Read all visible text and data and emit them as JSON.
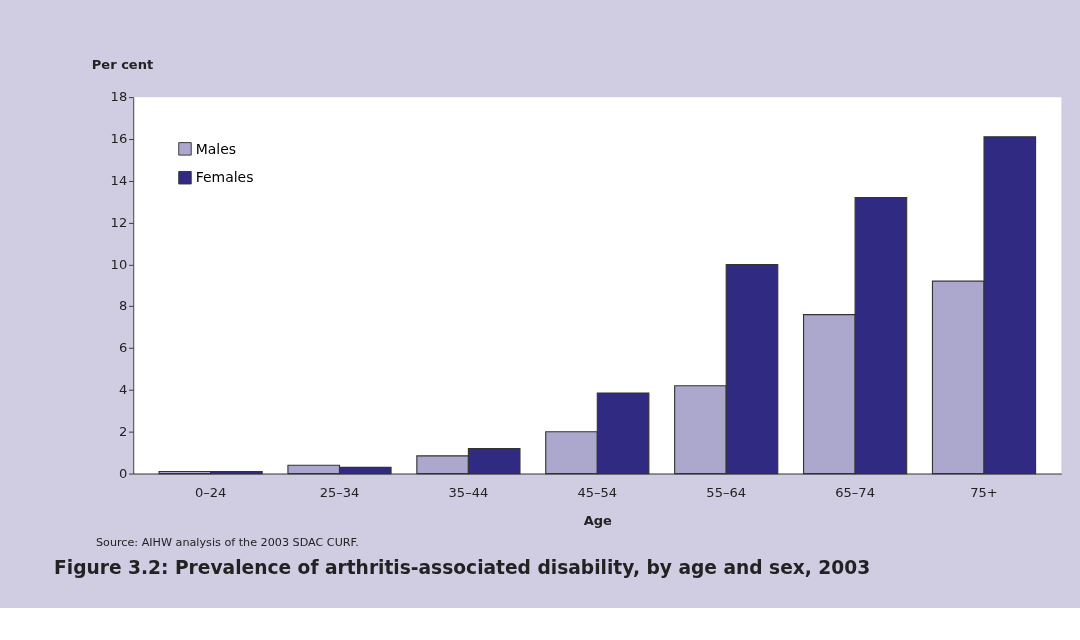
{
  "chart_data": {
    "type": "bar",
    "title": "Figure 3.2: Prevalence of arthritis-associated disability, by age and sex, 2003",
    "xlabel": "Age",
    "ylabel": "Per cent",
    "annotations": [
      "Source: AIHW analysis of the 2003 SDAC CURF."
    ],
    "categories": [
      "0–24",
      "25–34",
      "35–44",
      "45–54",
      "55–64",
      "65–74",
      "75+"
    ],
    "series": [
      {
        "name": "Males",
        "color": "#aca7cd",
        "values": [
          0.1,
          0.4,
          0.85,
          2.0,
          4.2,
          7.6,
          9.2
        ]
      },
      {
        "name": "Females",
        "color": "#312a82",
        "values": [
          0.1,
          0.3,
          1.2,
          3.85,
          10.0,
          13.2,
          16.1
        ]
      }
    ],
    "ylim": [
      0,
      18
    ],
    "yticks": [
      0,
      2,
      4,
      6,
      8,
      10,
      12,
      14,
      16,
      18
    ],
    "grid": false,
    "legend": "top left"
  }
}
